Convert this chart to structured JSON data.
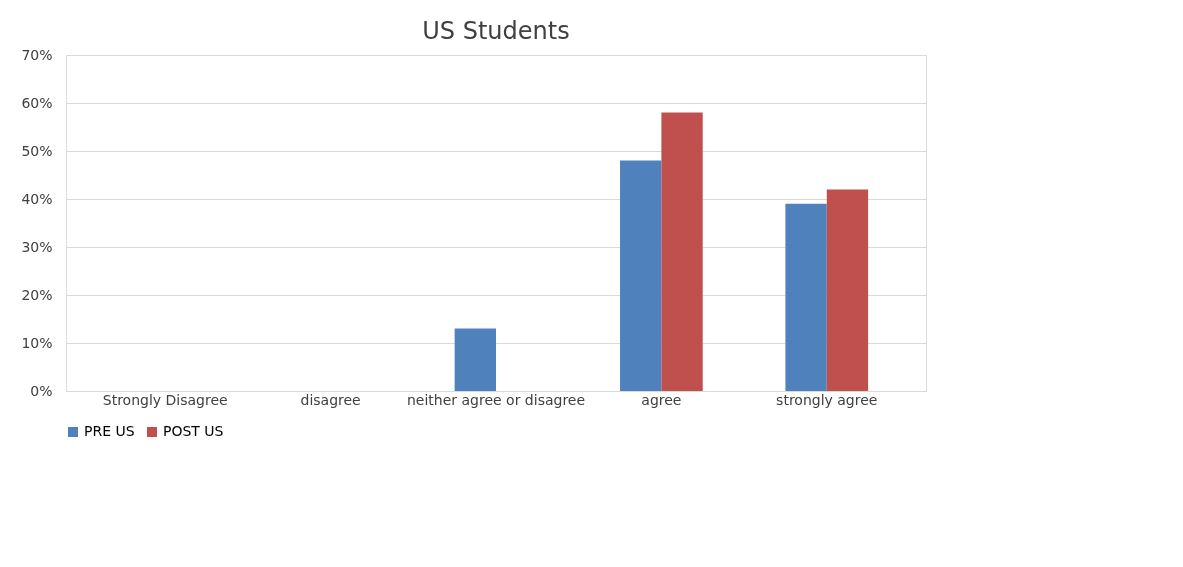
{
  "chart_data": {
    "type": "bar",
    "title": "US Students",
    "categories": [
      "Strongly Disagree",
      "disagree",
      "neither agree or disagree",
      "agree",
      "strongly agree"
    ],
    "series": [
      {
        "name": "PRE US",
        "color": "#4f81bd",
        "values": [
          0,
          0,
          13,
          48,
          39
        ]
      },
      {
        "name": "POST US",
        "color": "#c0504d",
        "values": [
          0,
          0,
          0,
          58,
          42
        ]
      }
    ],
    "ylim": [
      0,
      70
    ],
    "yticks": [
      {
        "value": 0,
        "label": "0%"
      },
      {
        "value": 10,
        "label": "10%"
      },
      {
        "value": 20,
        "label": "20%"
      },
      {
        "value": 30,
        "label": "30%"
      },
      {
        "value": 40,
        "label": "40%"
      },
      {
        "value": 50,
        "label": "50%"
      },
      {
        "value": 60,
        "label": "60%"
      },
      {
        "value": 70,
        "label": "70%"
      }
    ],
    "grid": "y",
    "legend": "bottom"
  }
}
